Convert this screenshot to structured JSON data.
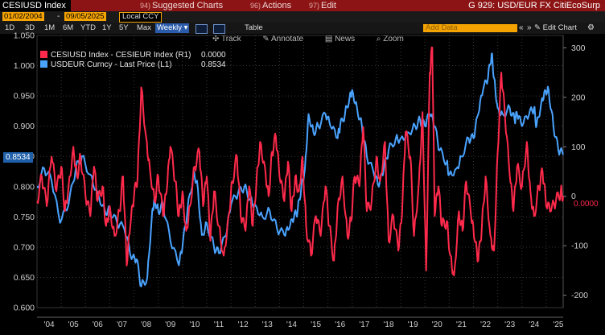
{
  "header": {
    "ticker": "CESIUSD Index",
    "menus": [
      {
        "num": "94)",
        "label": "Suggested Charts"
      },
      {
        "num": "96)",
        "label": "Actions"
      },
      {
        "num": "97)",
        "label": "Edit"
      }
    ],
    "function_code": "G 929: USD/EUR FX CitiEcoSurp"
  },
  "dates": {
    "start": "01/02/2004",
    "separator": "-",
    "end": "09/05/2025",
    "currency": "Local CCY"
  },
  "toolbar": {
    "periods": [
      "1D",
      "3D",
      "1M",
      "6M",
      "YTD",
      "1Y",
      "5Y",
      "Max"
    ],
    "frequency": "Weekly",
    "table_label": "Table",
    "add_data_placeholder": "Add Data",
    "edit_chart_label": "Edit Chart",
    "tools": [
      "Track",
      "Annotate",
      "News",
      "Zoom"
    ]
  },
  "legend": [
    {
      "label": "CESIUSD Index - CESIEUR Index (R1)",
      "value": "0.0000",
      "color": "#ff2a4b"
    },
    {
      "label": "USDEUR Curncy - Last Price (L1)",
      "value": "0.8534",
      "color": "#4aa3ff"
    }
  ],
  "chart_data": {
    "type": "line",
    "x_axis": {
      "ticks": [
        "'04",
        "'05",
        "'06",
        "'07",
        "'08",
        "'09",
        "'10",
        "'11",
        "'12",
        "'13",
        "'14",
        "'15",
        "'16",
        "'17",
        "'18",
        "'19",
        "'20",
        "'21",
        "'22",
        "'23",
        "'24",
        "'25"
      ],
      "range": [
        2004.0,
        2025.7
      ]
    },
    "left_axis": {
      "min": 0.6,
      "max": 1.05,
      "ticks": [
        "1.050",
        "1.000",
        "0.950",
        "0.900",
        "0.850",
        "0.800",
        "0.750",
        "0.700",
        "0.650",
        "0.600"
      ],
      "last_label": "0.8534"
    },
    "right_axis": {
      "min": -225,
      "max": 325,
      "ticks": [
        "300",
        "200",
        "100",
        "0",
        "-100",
        "-200"
      ],
      "last_label": "0.0000"
    },
    "series": [
      {
        "name": "USDEUR Curncy - Last Price (L1)",
        "axis": "left",
        "color": "#4aa3ff",
        "x": [
          2004.0,
          2004.3,
          2004.6,
          2004.95,
          2005.3,
          2005.6,
          2005.85,
          2006.2,
          2006.5,
          2006.8,
          2007.0,
          2007.3,
          2007.6,
          2007.9,
          2008.1,
          2008.3,
          2008.55,
          2008.75,
          2008.85,
          2009.0,
          2009.2,
          2009.5,
          2009.85,
          2010.0,
          2010.2,
          2010.45,
          2010.6,
          2010.8,
          2011.0,
          2011.3,
          2011.5,
          2011.8,
          2012.0,
          2012.3,
          2012.55,
          2012.8,
          2013.0,
          2013.3,
          2013.6,
          2013.9,
          2014.2,
          2014.4,
          2014.6,
          2014.75,
          2014.9,
          2015.05,
          2015.2,
          2015.4,
          2015.6,
          2015.9,
          2016.1,
          2016.4,
          2016.5,
          2016.7,
          2016.9,
          2017.0,
          2017.2,
          2017.4,
          2017.6,
          2017.9,
          2018.1,
          2018.3,
          2018.5,
          2018.8,
          2019.0,
          2019.3,
          2019.6,
          2019.8,
          2020.0,
          2020.2,
          2020.4,
          2020.6,
          2020.9,
          2021.0,
          2021.3,
          2021.5,
          2021.8,
          2022.0,
          2022.2,
          2022.4,
          2022.6,
          2022.75,
          2022.85,
          2023.0,
          2023.2,
          2023.5,
          2023.7,
          2023.8,
          2024.0,
          2024.3,
          2024.5,
          2024.6,
          2024.8,
          2024.95,
          2025.1,
          2025.3,
          2025.5,
          2025.7
        ],
        "y": [
          0.8,
          0.83,
          0.81,
          0.74,
          0.77,
          0.83,
          0.85,
          0.82,
          0.79,
          0.76,
          0.76,
          0.74,
          0.73,
          0.68,
          0.68,
          0.635,
          0.65,
          0.76,
          0.78,
          0.76,
          0.77,
          0.71,
          0.67,
          0.7,
          0.76,
          0.82,
          0.81,
          0.72,
          0.74,
          0.7,
          0.69,
          0.72,
          0.77,
          0.79,
          0.8,
          0.78,
          0.77,
          0.75,
          0.76,
          0.73,
          0.72,
          0.73,
          0.75,
          0.76,
          0.8,
          0.83,
          0.92,
          0.89,
          0.9,
          0.92,
          0.9,
          0.88,
          0.9,
          0.92,
          0.95,
          0.96,
          0.93,
          0.9,
          0.85,
          0.82,
          0.8,
          0.83,
          0.86,
          0.88,
          0.88,
          0.89,
          0.9,
          0.91,
          0.9,
          0.92,
          0.9,
          0.86,
          0.84,
          0.82,
          0.83,
          0.85,
          0.88,
          0.88,
          0.92,
          0.96,
          0.98,
          1.02,
          0.98,
          0.93,
          0.92,
          0.93,
          0.91,
          0.92,
          0.9,
          0.92,
          0.93,
          0.9,
          0.94,
          0.96,
          0.96,
          0.9,
          0.86,
          0.853
        ]
      },
      {
        "name": "CESIUSD Index - CESIEUR Index (R1)",
        "axis": "right",
        "color": "#ff2a4b",
        "x": [
          2004.0,
          2004.2,
          2004.4,
          2004.6,
          2004.8,
          2005.0,
          2005.15,
          2005.3,
          2005.5,
          2005.65,
          2005.8,
          2006.0,
          2006.2,
          2006.35,
          2006.5,
          2006.7,
          2006.85,
          2007.0,
          2007.2,
          2007.4,
          2007.55,
          2007.7,
          2007.85,
          2008.0,
          2008.15,
          2008.3,
          2008.5,
          2008.65,
          2008.85,
          2009.0,
          2009.2,
          2009.35,
          2009.5,
          2009.7,
          2009.85,
          2010.0,
          2010.15,
          2010.3,
          2010.5,
          2010.7,
          2010.85,
          2011.0,
          2011.15,
          2011.3,
          2011.5,
          2011.7,
          2011.9,
          2012.05,
          2012.25,
          2012.4,
          2012.6,
          2012.75,
          2012.9,
          2013.05,
          2013.2,
          2013.4,
          2013.55,
          2013.7,
          2013.85,
          2014.0,
          2014.2,
          2014.35,
          2014.5,
          2014.65,
          2014.8,
          2014.95,
          2015.1,
          2015.3,
          2015.5,
          2015.7,
          2015.9,
          2016.05,
          2016.25,
          2016.4,
          2016.6,
          2016.8,
          2016.95,
          2017.1,
          2017.3,
          2017.45,
          2017.6,
          2017.8,
          2018.0,
          2018.15,
          2018.35,
          2018.5,
          2018.7,
          2018.9,
          2019.05,
          2019.2,
          2019.4,
          2019.55,
          2019.75,
          2019.9,
          2020.05,
          2020.2,
          2020.3,
          2020.4,
          2020.55,
          2020.7,
          2020.9,
          2021.05,
          2021.2,
          2021.4,
          2021.55,
          2021.7,
          2021.9,
          2022.05,
          2022.2,
          2022.35,
          2022.5,
          2022.7,
          2022.85,
          2023.0,
          2023.15,
          2023.3,
          2023.5,
          2023.65,
          2023.8,
          2024.0,
          2024.2,
          2024.35,
          2024.5,
          2024.7,
          2024.85,
          2025.0,
          2025.2,
          2025.4,
          2025.6,
          2025.7
        ],
        "y": [
          -10,
          40,
          -20,
          80,
          10,
          60,
          -30,
          20,
          100,
          40,
          80,
          0,
          -40,
          60,
          -10,
          20,
          -60,
          -20,
          -80,
          -30,
          40,
          -140,
          -60,
          0,
          40,
          220,
          120,
          60,
          -10,
          40,
          -40,
          10,
          100,
          30,
          -40,
          10,
          -70,
          -20,
          60,
          90,
          -20,
          40,
          -90,
          10,
          -60,
          -120,
          -40,
          30,
          80,
          -40,
          -70,
          20,
          -60,
          30,
          110,
          60,
          0,
          90,
          120,
          40,
          -10,
          70,
          -30,
          40,
          10,
          80,
          -60,
          -120,
          -40,
          -80,
          20,
          -60,
          -130,
          -20,
          40,
          -80,
          -50,
          40,
          20,
          140,
          -30,
          -10,
          80,
          30,
          110,
          -90,
          -40,
          -110,
          -40,
          130,
          80,
          -80,
          30,
          170,
          -150,
          250,
          300,
          -40,
          20,
          -60,
          -50,
          -120,
          -160,
          -30,
          -70,
          30,
          -40,
          -90,
          -130,
          -60,
          40,
          -80,
          -110,
          90,
          250,
          160,
          40,
          -30,
          60,
          20,
          110,
          10,
          -40,
          20,
          50,
          -20,
          -30,
          -10,
          10,
          0
        ]
      }
    ]
  }
}
